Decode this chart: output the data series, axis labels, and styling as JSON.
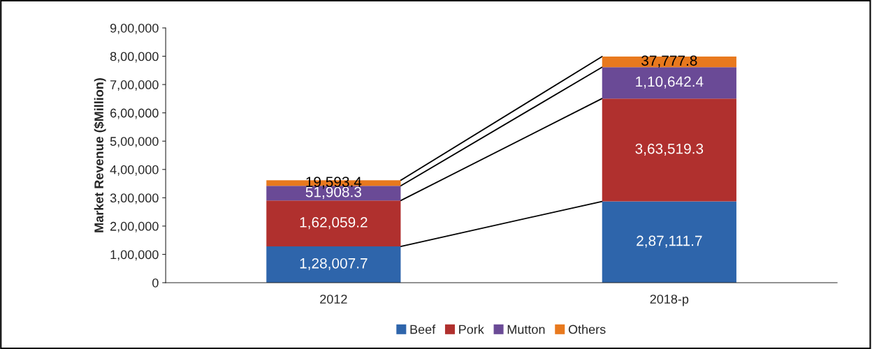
{
  "chart_data": {
    "type": "bar",
    "stacked": true,
    "ylabel": "Market Revenue ($Million)",
    "categories": [
      "2012",
      "2018-p"
    ],
    "series": [
      {
        "name": "Beef",
        "color": "#2e65ab",
        "values": [
          128007.7,
          287111.7
        ],
        "value_labels": [
          "1,28,007.7",
          "2,87,111.7"
        ]
      },
      {
        "name": "Pork",
        "color": "#b0302e",
        "values": [
          162059.2,
          363519.3
        ],
        "value_labels": [
          "1,62,059.2",
          "3,63,519.3"
        ]
      },
      {
        "name": "Mutton",
        "color": "#6a4a96",
        "values": [
          51908.3,
          110642.4
        ],
        "value_labels": [
          "51,908.3",
          "1,10,642.4"
        ]
      },
      {
        "name": "Others",
        "color": "#e8791e",
        "values": [
          19593.4,
          37777.8
        ],
        "value_labels": [
          "19,593.4",
          "37,777.8"
        ]
      }
    ],
    "ylim": [
      0,
      900000
    ],
    "yticks": [
      0,
      {
        "value": 100000,
        "label": "1,00,000"
      },
      {
        "value": 200000,
        "label": "2,00,000"
      },
      {
        "value": 300000,
        "label": "3,00,000"
      },
      {
        "value": 400000,
        "label": "4,00,000"
      },
      {
        "value": 500000,
        "label": "5,00,000"
      },
      {
        "value": 600000,
        "label": "6,00,000"
      },
      {
        "value": 700000,
        "label": "7,00,000"
      },
      {
        "value": 800000,
        "label": "8,00,000"
      },
      {
        "value": 900000,
        "label": "9,00,000"
      }
    ],
    "grid": false,
    "legend": "bottom"
  }
}
